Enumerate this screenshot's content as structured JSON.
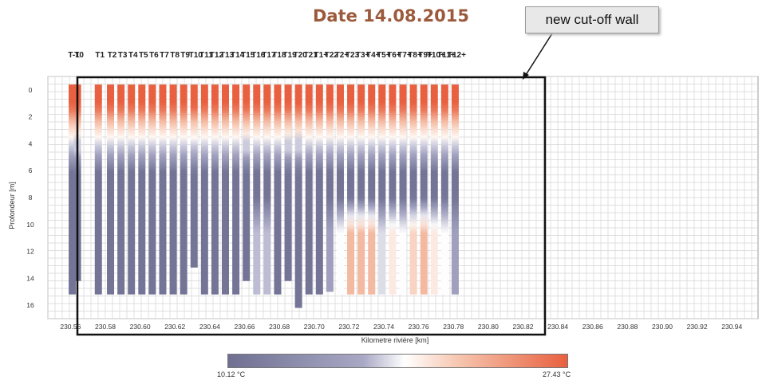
{
  "title": "Date 14.08.2015",
  "callout": "new cut-off wall",
  "chart_data": {
    "type": "heatmap",
    "title": "Date 14.08.2015",
    "xlabel": "Kilometre rivière [km]",
    "ylabel": "Profondeur [m]",
    "xlim": [
      230.547,
      230.955
    ],
    "ylim": [
      -1,
      17
    ],
    "x_ticks": [
      "230.56",
      "230.58",
      "230.60",
      "230.62",
      "230.64",
      "230.66",
      "230.68",
      "230.70",
      "230.72",
      "230.74",
      "230.76",
      "230.78",
      "230.80",
      "230.82",
      "230.84",
      "230.86",
      "230.88",
      "230.90",
      "230.92",
      "230.94"
    ],
    "y_ticks": [
      "0",
      "2",
      "4",
      "6",
      "8",
      "10",
      "12",
      "14",
      "16"
    ],
    "colorbar": {
      "min": 10.12,
      "max": 27.43,
      "min_label": "10.12 °C",
      "max_label": "27.43 °C",
      "colors": [
        "#6f6f92",
        "#a9a9c6",
        "#ffffff",
        "#f6c5ae",
        "#e8603f"
      ]
    },
    "grid": true,
    "annotation": "new cut-off wall",
    "profiles": [
      {
        "label": "T-1",
        "x": 230.561,
        "bottom": 15.2,
        "warm_deep": 0
      },
      {
        "label": "T0",
        "x": 230.564,
        "bottom": 14.2,
        "warm_deep": 0
      },
      {
        "label": "T1",
        "x": 230.576,
        "bottom": 15.2,
        "warm_deep": 0
      },
      {
        "label": "T2",
        "x": 230.583,
        "bottom": 15.2,
        "warm_deep": 0
      },
      {
        "label": "T3",
        "x": 230.589,
        "bottom": 15.2,
        "warm_deep": 0
      },
      {
        "label": "T4",
        "x": 230.595,
        "bottom": 15.2,
        "warm_deep": 0
      },
      {
        "label": "T5",
        "x": 230.601,
        "bottom": 15.2,
        "warm_deep": 0
      },
      {
        "label": "T6",
        "x": 230.607,
        "bottom": 15.2,
        "warm_deep": 0
      },
      {
        "label": "T7",
        "x": 230.613,
        "bottom": 15.2,
        "warm_deep": 0
      },
      {
        "label": "T8",
        "x": 230.619,
        "bottom": 15.2,
        "warm_deep": 0
      },
      {
        "label": "T9",
        "x": 230.625,
        "bottom": 15.2,
        "warm_deep": 0
      },
      {
        "label": "T10",
        "x": 230.631,
        "bottom": 13.2,
        "warm_deep": 0
      },
      {
        "label": "T11",
        "x": 230.637,
        "bottom": 15.2,
        "warm_deep": 0
      },
      {
        "label": "T12",
        "x": 230.643,
        "bottom": 15.2,
        "warm_deep": 0
      },
      {
        "label": "T13",
        "x": 230.649,
        "bottom": 15.2,
        "warm_deep": 0
      },
      {
        "label": "T14",
        "x": 230.655,
        "bottom": 15.2,
        "warm_deep": 0
      },
      {
        "label": "T15",
        "x": 230.661,
        "bottom": 14.2,
        "warm_deep": 0
      },
      {
        "label": "T16",
        "x": 230.667,
        "bottom": 15.2,
        "warm_deep": 0.3
      },
      {
        "label": "T17",
        "x": 230.673,
        "bottom": 15.2,
        "warm_deep": 0.3
      },
      {
        "label": "T18",
        "x": 230.679,
        "bottom": 15.2,
        "warm_deep": 0
      },
      {
        "label": "T19",
        "x": 230.685,
        "bottom": 14.2,
        "warm_deep": 0
      },
      {
        "label": "T20",
        "x": 230.691,
        "bottom": 16.2,
        "warm_deep": 0
      },
      {
        "label": "T21",
        "x": 230.697,
        "bottom": 15.2,
        "warm_deep": 0
      },
      {
        "label": "T1+",
        "x": 230.703,
        "bottom": 15.2,
        "warm_deep": 0
      },
      {
        "label": "T22",
        "x": 230.709,
        "bottom": 15.0,
        "warm_deep": 0.2
      },
      {
        "label": "T2+",
        "x": 230.715,
        "bottom": 15.2,
        "warm_deep": 0.5
      },
      {
        "label": "T23",
        "x": 230.721,
        "bottom": 15.2,
        "warm_deep": 0.8
      },
      {
        "label": "T3+",
        "x": 230.727,
        "bottom": 15.2,
        "warm_deep": 0.8
      },
      {
        "label": "T4+",
        "x": 230.733,
        "bottom": 15.2,
        "warm_deep": 0.8
      },
      {
        "label": "T5+",
        "x": 230.739,
        "bottom": 15.2,
        "warm_deep": 0.4
      },
      {
        "label": "T6+",
        "x": 230.745,
        "bottom": 15.2,
        "warm_deep": 0.6
      },
      {
        "label": "T7+",
        "x": 230.751,
        "bottom": 15.2,
        "warm_deep": 0.5
      },
      {
        "label": "T8+",
        "x": 230.757,
        "bottom": 15.2,
        "warm_deep": 0.7
      },
      {
        "label": "T9+",
        "x": 230.763,
        "bottom": 15.2,
        "warm_deep": 0.8
      },
      {
        "label": "T10+",
        "x": 230.769,
        "bottom": 15.2,
        "warm_deep": 0.6
      },
      {
        "label": "T11+",
        "x": 230.775,
        "bottom": 15.2,
        "warm_deep": 0.5
      },
      {
        "label": "T12+",
        "x": 230.781,
        "bottom": 15.2,
        "warm_deep": 0.2
      }
    ]
  }
}
